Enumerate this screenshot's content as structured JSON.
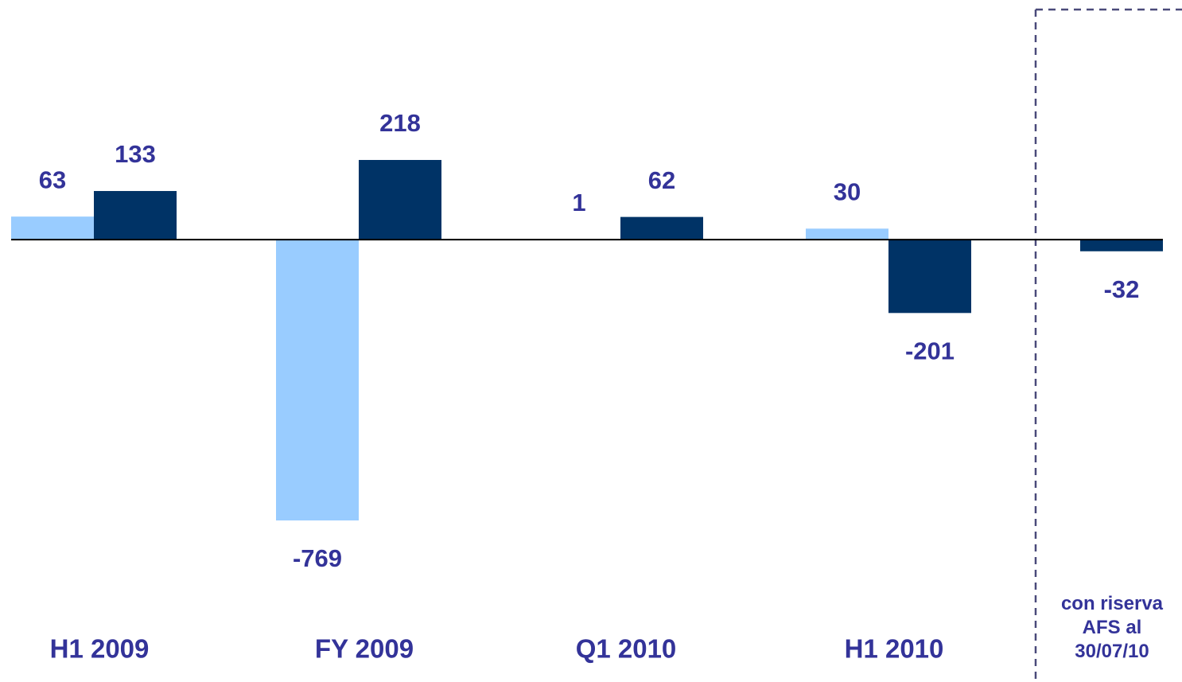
{
  "chart_data": {
    "type": "bar",
    "categories": [
      "H1 2009",
      "FY 2009",
      "Q1 2010",
      "H1 2010",
      "con riserva\nAFS al\n30/07/10"
    ],
    "series": [
      {
        "color": "#99ccff",
        "values": [
          63,
          -769,
          1,
          30,
          null
        ]
      },
      {
        "color": "#003366",
        "values": [
          133,
          218,
          62,
          -201,
          -32
        ]
      }
    ],
    "ylim": [
      -1000,
      656
    ]
  }
}
